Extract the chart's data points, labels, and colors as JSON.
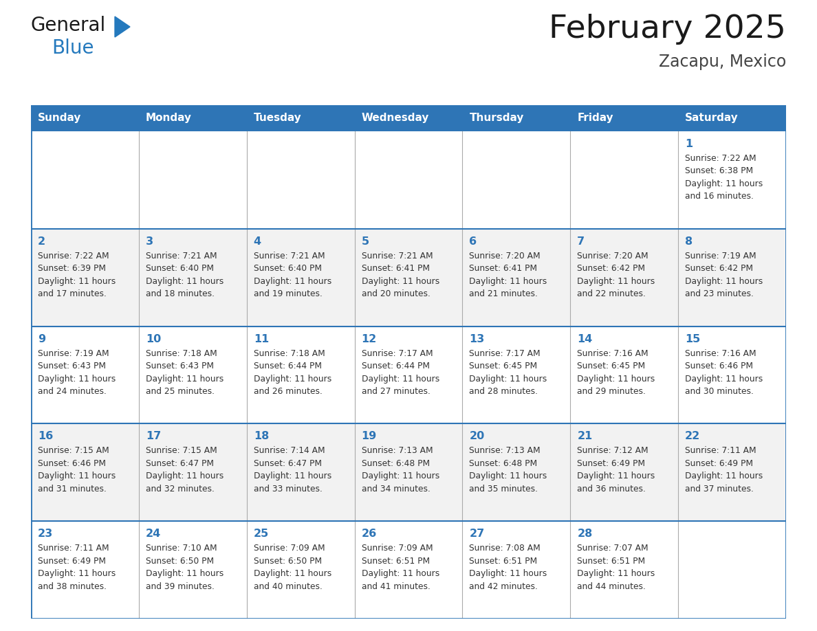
{
  "title": "February 2025",
  "subtitle": "Zacapu, Mexico",
  "header_bg": "#2E75B6",
  "header_text_color": "#FFFFFF",
  "border_color": "#2E75B6",
  "row_separator_color": "#2E75B6",
  "col_separator_color": "#AAAAAA",
  "title_color": "#1A1A1A",
  "subtitle_color": "#444444",
  "day_num_color": "#2E75B6",
  "cell_text_color": "#333333",
  "cell_bg_even": "#FFFFFF",
  "cell_bg_odd": "#F2F2F2",
  "logo_general_color": "#1A1A1A",
  "logo_blue_color": "#2479BD",
  "logo_triangle_color": "#2479BD",
  "days_of_week": [
    "Sunday",
    "Monday",
    "Tuesday",
    "Wednesday",
    "Thursday",
    "Friday",
    "Saturday"
  ],
  "weeks": [
    [
      {
        "day": null,
        "info": null
      },
      {
        "day": null,
        "info": null
      },
      {
        "day": null,
        "info": null
      },
      {
        "day": null,
        "info": null
      },
      {
        "day": null,
        "info": null
      },
      {
        "day": null,
        "info": null
      },
      {
        "day": 1,
        "info": "Sunrise: 7:22 AM\nSunset: 6:38 PM\nDaylight: 11 hours\nand 16 minutes."
      }
    ],
    [
      {
        "day": 2,
        "info": "Sunrise: 7:22 AM\nSunset: 6:39 PM\nDaylight: 11 hours\nand 17 minutes."
      },
      {
        "day": 3,
        "info": "Sunrise: 7:21 AM\nSunset: 6:40 PM\nDaylight: 11 hours\nand 18 minutes."
      },
      {
        "day": 4,
        "info": "Sunrise: 7:21 AM\nSunset: 6:40 PM\nDaylight: 11 hours\nand 19 minutes."
      },
      {
        "day": 5,
        "info": "Sunrise: 7:21 AM\nSunset: 6:41 PM\nDaylight: 11 hours\nand 20 minutes."
      },
      {
        "day": 6,
        "info": "Sunrise: 7:20 AM\nSunset: 6:41 PM\nDaylight: 11 hours\nand 21 minutes."
      },
      {
        "day": 7,
        "info": "Sunrise: 7:20 AM\nSunset: 6:42 PM\nDaylight: 11 hours\nand 22 minutes."
      },
      {
        "day": 8,
        "info": "Sunrise: 7:19 AM\nSunset: 6:42 PM\nDaylight: 11 hours\nand 23 minutes."
      }
    ],
    [
      {
        "day": 9,
        "info": "Sunrise: 7:19 AM\nSunset: 6:43 PM\nDaylight: 11 hours\nand 24 minutes."
      },
      {
        "day": 10,
        "info": "Sunrise: 7:18 AM\nSunset: 6:43 PM\nDaylight: 11 hours\nand 25 minutes."
      },
      {
        "day": 11,
        "info": "Sunrise: 7:18 AM\nSunset: 6:44 PM\nDaylight: 11 hours\nand 26 minutes."
      },
      {
        "day": 12,
        "info": "Sunrise: 7:17 AM\nSunset: 6:44 PM\nDaylight: 11 hours\nand 27 minutes."
      },
      {
        "day": 13,
        "info": "Sunrise: 7:17 AM\nSunset: 6:45 PM\nDaylight: 11 hours\nand 28 minutes."
      },
      {
        "day": 14,
        "info": "Sunrise: 7:16 AM\nSunset: 6:45 PM\nDaylight: 11 hours\nand 29 minutes."
      },
      {
        "day": 15,
        "info": "Sunrise: 7:16 AM\nSunset: 6:46 PM\nDaylight: 11 hours\nand 30 minutes."
      }
    ],
    [
      {
        "day": 16,
        "info": "Sunrise: 7:15 AM\nSunset: 6:46 PM\nDaylight: 11 hours\nand 31 minutes."
      },
      {
        "day": 17,
        "info": "Sunrise: 7:15 AM\nSunset: 6:47 PM\nDaylight: 11 hours\nand 32 minutes."
      },
      {
        "day": 18,
        "info": "Sunrise: 7:14 AM\nSunset: 6:47 PM\nDaylight: 11 hours\nand 33 minutes."
      },
      {
        "day": 19,
        "info": "Sunrise: 7:13 AM\nSunset: 6:48 PM\nDaylight: 11 hours\nand 34 minutes."
      },
      {
        "day": 20,
        "info": "Sunrise: 7:13 AM\nSunset: 6:48 PM\nDaylight: 11 hours\nand 35 minutes."
      },
      {
        "day": 21,
        "info": "Sunrise: 7:12 AM\nSunset: 6:49 PM\nDaylight: 11 hours\nand 36 minutes."
      },
      {
        "day": 22,
        "info": "Sunrise: 7:11 AM\nSunset: 6:49 PM\nDaylight: 11 hours\nand 37 minutes."
      }
    ],
    [
      {
        "day": 23,
        "info": "Sunrise: 7:11 AM\nSunset: 6:49 PM\nDaylight: 11 hours\nand 38 minutes."
      },
      {
        "day": 24,
        "info": "Sunrise: 7:10 AM\nSunset: 6:50 PM\nDaylight: 11 hours\nand 39 minutes."
      },
      {
        "day": 25,
        "info": "Sunrise: 7:09 AM\nSunset: 6:50 PM\nDaylight: 11 hours\nand 40 minutes."
      },
      {
        "day": 26,
        "info": "Sunrise: 7:09 AM\nSunset: 6:51 PM\nDaylight: 11 hours\nand 41 minutes."
      },
      {
        "day": 27,
        "info": "Sunrise: 7:08 AM\nSunset: 6:51 PM\nDaylight: 11 hours\nand 42 minutes."
      },
      {
        "day": 28,
        "info": "Sunrise: 7:07 AM\nSunset: 6:51 PM\nDaylight: 11 hours\nand 44 minutes."
      },
      {
        "day": null,
        "info": null
      }
    ]
  ],
  "figsize": [
    11.88,
    9.18
  ],
  "dpi": 100
}
